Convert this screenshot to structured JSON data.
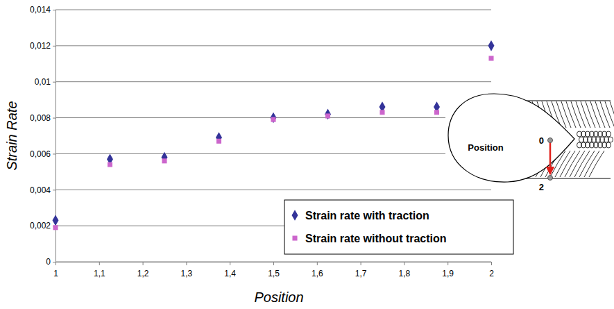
{
  "chart_data": {
    "type": "scatter",
    "x_label": "Position",
    "y_label": "Strain Rate",
    "x": [
      1,
      1.125,
      1.25,
      1.375,
      1.5,
      1.625,
      1.75,
      1.875,
      2
    ],
    "series": [
      {
        "name": "Strain rate with traction",
        "color": "#333399",
        "marker": "diamond",
        "values": [
          0.0023,
          0.0057,
          0.0058,
          0.0069,
          0.008,
          0.0082,
          0.0086,
          0.0086,
          0.012
        ]
      },
      {
        "name": "Strain rate without traction",
        "color": "#cc66cc",
        "marker": "square",
        "values": [
          0.0019,
          0.0054,
          0.0056,
          0.0067,
          0.0079,
          0.0081,
          0.0083,
          0.0083,
          0.0113
        ]
      }
    ],
    "xlim": [
      1,
      2
    ],
    "ylim": [
      0,
      0.014
    ],
    "xticks": [
      1,
      {
        "value": 1.1,
        "label": "1,1"
      },
      {
        "value": 1.2,
        "label": "1,2"
      },
      {
        "value": 1.3,
        "label": "1,3"
      },
      {
        "value": 1.4,
        "label": "1,4"
      },
      {
        "value": 1.5,
        "label": "1,5"
      },
      {
        "value": 1.6,
        "label": "1,6"
      },
      {
        "value": 1.7,
        "label": "1,7"
      },
      {
        "value": 1.8,
        "label": "1,8"
      },
      {
        "value": 1.9,
        "label": "1,9"
      },
      2
    ],
    "yticks": [
      0,
      {
        "value": 0.002,
        "label": "0,002"
      },
      {
        "value": 0.004,
        "label": "0,004"
      },
      {
        "value": 0.006,
        "label": "0,006"
      },
      {
        "value": 0.008,
        "label": "0,008"
      },
      {
        "value": 0.01,
        "label": "0,01"
      },
      {
        "value": 0.012,
        "label": "0,012"
      },
      {
        "value": 0.014,
        "label": "0,014"
      }
    ],
    "grid": true,
    "legend": "lower right",
    "annotations": [
      "Position",
      "0",
      "2"
    ]
  }
}
